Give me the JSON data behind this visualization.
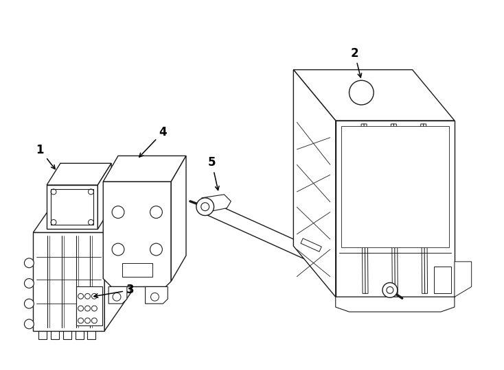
{
  "background_color": "#ffffff",
  "line_color": "#1a1a1a",
  "line_width": 1.0,
  "fig_width": 7.34,
  "fig_height": 5.4,
  "dpi": 100
}
